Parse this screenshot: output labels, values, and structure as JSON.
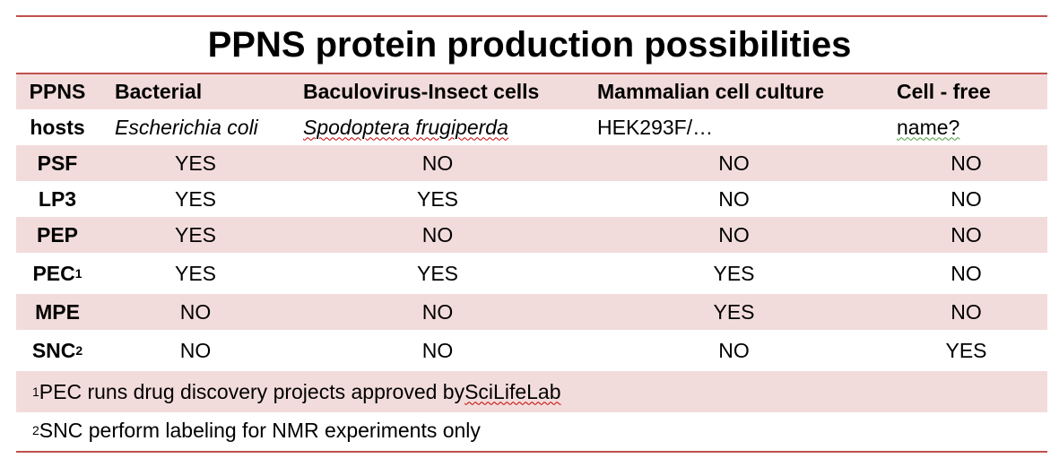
{
  "title": "PPNS protein production possibilities",
  "colors": {
    "rule": "#c0504d",
    "shaded_row": "#f2dcdb"
  },
  "header": {
    "ppns": "PPNS",
    "bacterial": "Bacterial",
    "baculovirus": "Baculovirus-Insect cells",
    "mammalian": "Mammalian cell culture",
    "cellfree": "Cell - free"
  },
  "hosts": {
    "label": "hosts",
    "bacterial": "Escherichia coli",
    "baculovirus": "Spodoptera frugiperda",
    "mammalian": "HEK293F/…",
    "cellfree": "name?"
  },
  "rows": [
    {
      "name": "PSF",
      "sup": "",
      "bacterial": "YES",
      "baculovirus": "NO",
      "mammalian": "NO",
      "cellfree": "NO"
    },
    {
      "name": "LP3",
      "sup": "",
      "bacterial": "YES",
      "baculovirus": "YES",
      "mammalian": "NO",
      "cellfree": "NO"
    },
    {
      "name": "PEP",
      "sup": "",
      "bacterial": "YES",
      "baculovirus": "NO",
      "mammalian": "NO",
      "cellfree": "NO"
    },
    {
      "name": "PEC",
      "sup": "1",
      "bacterial": "YES",
      "baculovirus": "YES",
      "mammalian": "YES",
      "cellfree": "NO"
    },
    {
      "name": "MPE",
      "sup": "",
      "bacterial": "NO",
      "baculovirus": "NO",
      "mammalian": "YES",
      "cellfree": "NO"
    },
    {
      "name": "SNC",
      "sup": "2",
      "bacterial": "NO",
      "baculovirus": "NO",
      "mammalian": "NO",
      "cellfree": "YES"
    }
  ],
  "footnotes": [
    {
      "marker": "1",
      "text": "PEC runs drug discovery projects approved by ",
      "link": "SciLifeLab"
    },
    {
      "marker": "2",
      "text": "SNC perform labeling for NMR experiments only",
      "link": ""
    }
  ]
}
